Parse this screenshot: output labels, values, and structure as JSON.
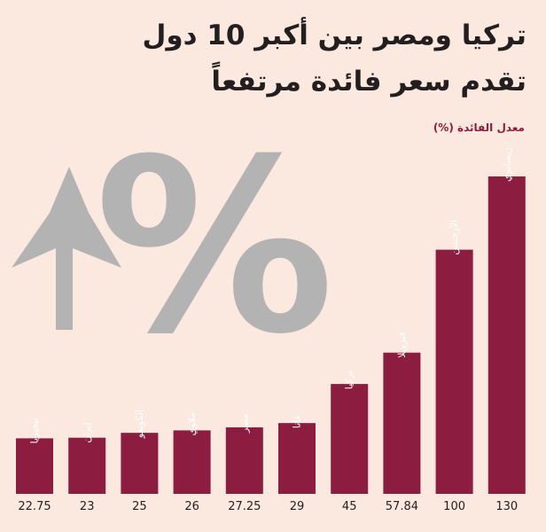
{
  "chart_data": {
    "type": "bar",
    "title_line1": "تركيا ومصر بين أكبر 10 دول",
    "title_line2": "تقدم سعر فائدة مرتفعاً",
    "ylabel": "معدل الفائدة (%)",
    "categories": [
      "نيجيريا",
      "إيران",
      "الكونغو",
      "ملاوي",
      "مصر",
      "غانا",
      "تركيا",
      "فنزويلا",
      "الأرجنتين",
      "زيمبابوي"
    ],
    "values": [
      22.75,
      23,
      25,
      26,
      27.25,
      29,
      45,
      57.84,
      100,
      130
    ],
    "value_labels": [
      "22.75",
      "23",
      "25",
      "26",
      "27.25",
      "29",
      "45",
      "57.84",
      "100",
      "130"
    ],
    "ylim": [
      0,
      130
    ],
    "grid": false,
    "decoration": [
      "arrow-up-icon",
      "percent-icon"
    ],
    "colors": {
      "bar": "#8c1d40",
      "background": "#fbe8df",
      "decoration": "#b3b3b3",
      "title": "#231f20"
    }
  }
}
